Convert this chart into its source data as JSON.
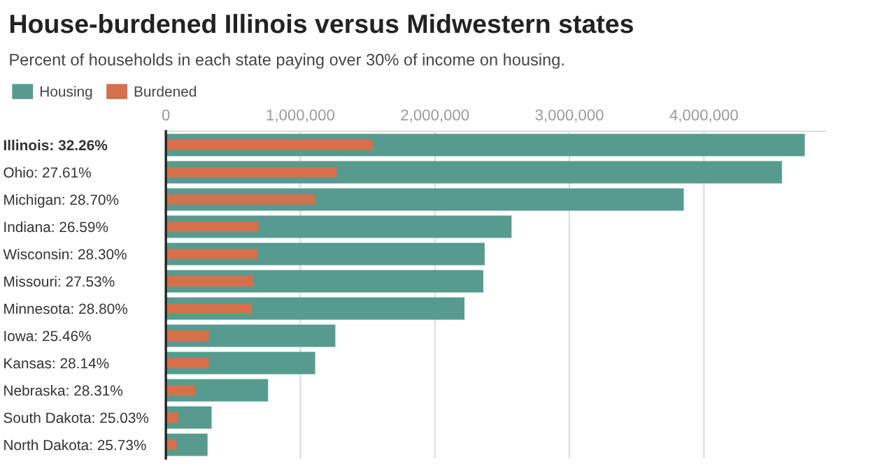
{
  "chart_data": {
    "type": "bar",
    "orientation": "horizontal",
    "title": "House-burdened Illinois versus Midwestern states",
    "subtitle": "Percent of households in each state paying over 30% of income on housing.",
    "categories": [
      "Illinois: 32.26%",
      "Ohio: 27.61%",
      "Michigan: 28.70%",
      "Indiana: 26.59%",
      "Wisconsin: 28.30%",
      "Missouri: 27.53%",
      "Minnesota: 28.80%",
      "Iowa: 25.46%",
      "Kansas: 28.14%",
      "Nebraska: 28.31%",
      "South Dakota: 25.03%",
      "North Dakota: 25.73%"
    ],
    "series": [
      {
        "name": "Housing",
        "color": "#579b8f",
        "values": [
          4750000,
          4580000,
          3850000,
          2570000,
          2370000,
          2360000,
          2220000,
          1260000,
          1110000,
          760000,
          340000,
          310000
        ]
      },
      {
        "name": "Burdened",
        "color": "#d4704a",
        "values": [
          1540000,
          1270000,
          1110000,
          690000,
          680000,
          650000,
          640000,
          320000,
          320000,
          220000,
          90000,
          80000
        ]
      }
    ],
    "xlim": [
      0,
      4900000
    ],
    "xticks": [
      0,
      {
        "value": 1000000,
        "label": "1,000,000"
      },
      {
        "value": 2000000,
        "label": "2,000,000"
      },
      {
        "value": 3000000,
        "label": "3,000,000"
      },
      {
        "value": 4000000,
        "label": "4,000,000"
      }
    ],
    "grid": "x",
    "legend": "top left"
  }
}
